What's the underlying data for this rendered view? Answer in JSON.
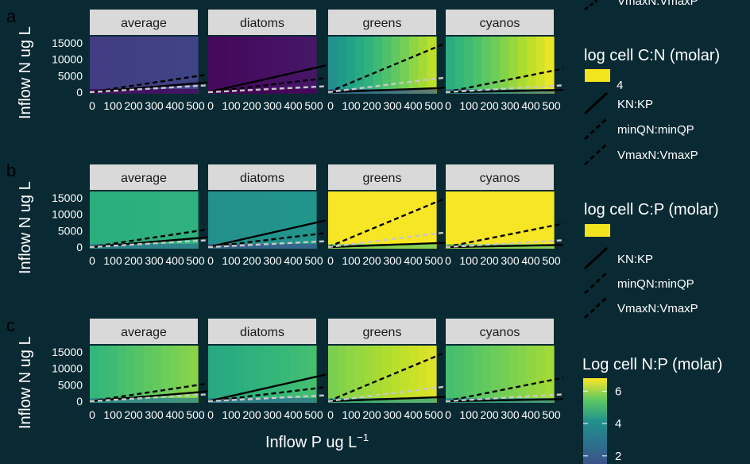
{
  "chart_data": [
    {
      "type": "heatmap",
      "tag": "a",
      "ylabel": "Inflow N ug L",
      "legend_title": "log cell C:N (molar)",
      "facets": [
        "average",
        "diatoms",
        "greens",
        "cyanos"
      ],
      "x_ticks": [
        0,
        100,
        200,
        300,
        400,
        500
      ],
      "y_ticks": [
        0,
        5000,
        10000,
        15000
      ],
      "xlim": [
        0,
        500
      ],
      "ylim": [
        0,
        15000
      ],
      "fill_low": [
        0.18,
        0.02,
        0.5,
        0.62
      ],
      "fill_high": [
        0.2,
        0.06,
        0.9,
        0.97
      ],
      "lines": [
        {
          "name": "KN:KP",
          "style": "solid",
          "color": "#000000",
          "slopes": [
            5,
            13.6,
            2.2,
            1.1
          ]
        },
        {
          "name": "minQN:minQP",
          "style": "dashed",
          "color": "#000000",
          "slopes": [
            9,
            7.2,
            25,
            12
          ]
        },
        {
          "name": "VmaxN:VmaxP",
          "style": "dashed",
          "color": "#c8c8c8",
          "slopes": [
            3.5,
            3.0,
            7.5,
            3.5
          ]
        }
      ]
    },
    {
      "type": "heatmap",
      "tag": "b",
      "ylabel": "Inflow N ug L",
      "legend_title": "log cell C:P (molar)",
      "facets": [
        "average",
        "diatoms",
        "greens",
        "cyanos"
      ],
      "x_ticks": [
        0,
        100,
        200,
        300,
        400,
        500
      ],
      "y_ticks": [
        0,
        5000,
        10000,
        15000
      ],
      "xlim": [
        0,
        500
      ],
      "ylim": [
        0,
        15000
      ],
      "fill_low": [
        0.62,
        0.5,
        0.99,
        0.99
      ],
      "fill_high": [
        0.64,
        0.52,
        0.99,
        0.99
      ],
      "lines": [
        {
          "name": "KN:KP",
          "style": "solid",
          "color": "#000000",
          "slopes": [
            5,
            13.6,
            2.2,
            1.1
          ]
        },
        {
          "name": "minQN:minQP",
          "style": "dashed",
          "color": "#000000",
          "slopes": [
            9,
            7.2,
            25,
            12
          ]
        },
        {
          "name": "VmaxN:VmaxP",
          "style": "dashed",
          "color": "#c8c8c8",
          "slopes": [
            3.5,
            3.0,
            7.5,
            3.5
          ]
        }
      ]
    },
    {
      "type": "heatmap",
      "tag": "c",
      "ylabel": "Inflow N ug L",
      "xlabel": "Inflow P ug L",
      "legend_title": "Log cell N:P (molar)",
      "legend_ticks": [
        2,
        4,
        6
      ],
      "facets": [
        "average",
        "diatoms",
        "greens",
        "cyanos"
      ],
      "x_ticks": [
        0,
        100,
        200,
        300,
        400,
        500
      ],
      "y_ticks": [
        0,
        5000,
        10000,
        15000
      ],
      "xlim": [
        0,
        500
      ],
      "ylim": [
        0,
        15000
      ],
      "fill_low": [
        0.66,
        0.6,
        0.8,
        0.7
      ],
      "fill_high": [
        0.82,
        0.7,
        0.95,
        0.86
      ],
      "lines": [
        {
          "name": "KN:KP",
          "style": "solid",
          "color": "#000000",
          "slopes": [
            5,
            13.6,
            2.2,
            1.1
          ]
        },
        {
          "name": "minQN:minQP",
          "style": "dashed",
          "color": "#000000",
          "slopes": [
            9,
            7.2,
            25,
            12
          ]
        },
        {
          "name": "VmaxN:VmaxP",
          "style": "dashed",
          "color": "#c8c8c8",
          "slopes": [
            3.5,
            3.0,
            7.5,
            3.5
          ]
        }
      ]
    }
  ],
  "legend_keys": [
    "KN:KP",
    "minQN:minQP",
    "VmaxN:VmaxP"
  ],
  "legend_top_clipped": "VmaxN:VmaxP",
  "legend_c_tick_partial": "4",
  "colors": {
    "background": "#0a2a33",
    "strip": "#d9d9d9",
    "line_black": "#000000",
    "line_grey": "#c8c8c8"
  }
}
